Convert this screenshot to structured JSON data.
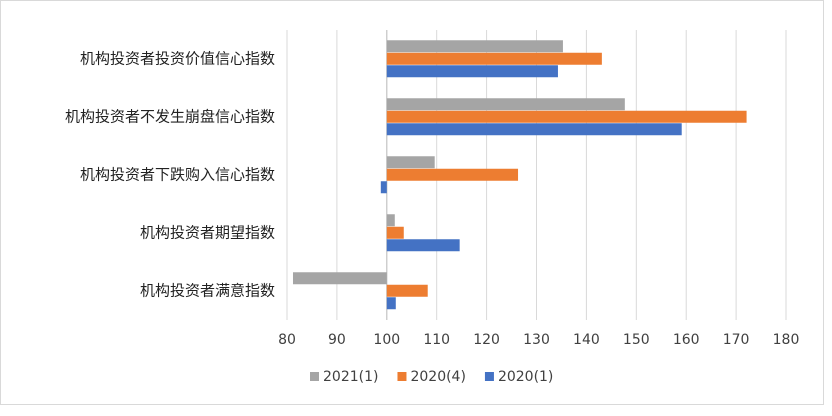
{
  "chart_data": {
    "type": "hbar",
    "categories": [
      "机构投资者投资价值信心指数",
      "机构投资者不发生崩盘信心指数",
      "机构投资者下跌购入信心指数",
      "机构投资者期望指数",
      "机构投资者满意指数"
    ],
    "series": [
      {
        "name": "2021(1)",
        "color": "#a5a5a5",
        "values": [
          135.3,
          147.7,
          109.6,
          101.6,
          81.2
        ]
      },
      {
        "name": "2020(4)",
        "color": "#ed7d31",
        "values": [
          143.1,
          172.1,
          126.3,
          103.4,
          108.2
        ]
      },
      {
        "name": "2020(1)",
        "color": "#4472c4",
        "values": [
          134.3,
          159.1,
          98.8,
          114.6,
          101.8
        ]
      }
    ],
    "base": 100,
    "xlim": [
      80,
      180
    ],
    "xticks": [
      80,
      90,
      100,
      110,
      120,
      130,
      140,
      150,
      160,
      170,
      180
    ],
    "grid": true,
    "legend": "bottom"
  }
}
